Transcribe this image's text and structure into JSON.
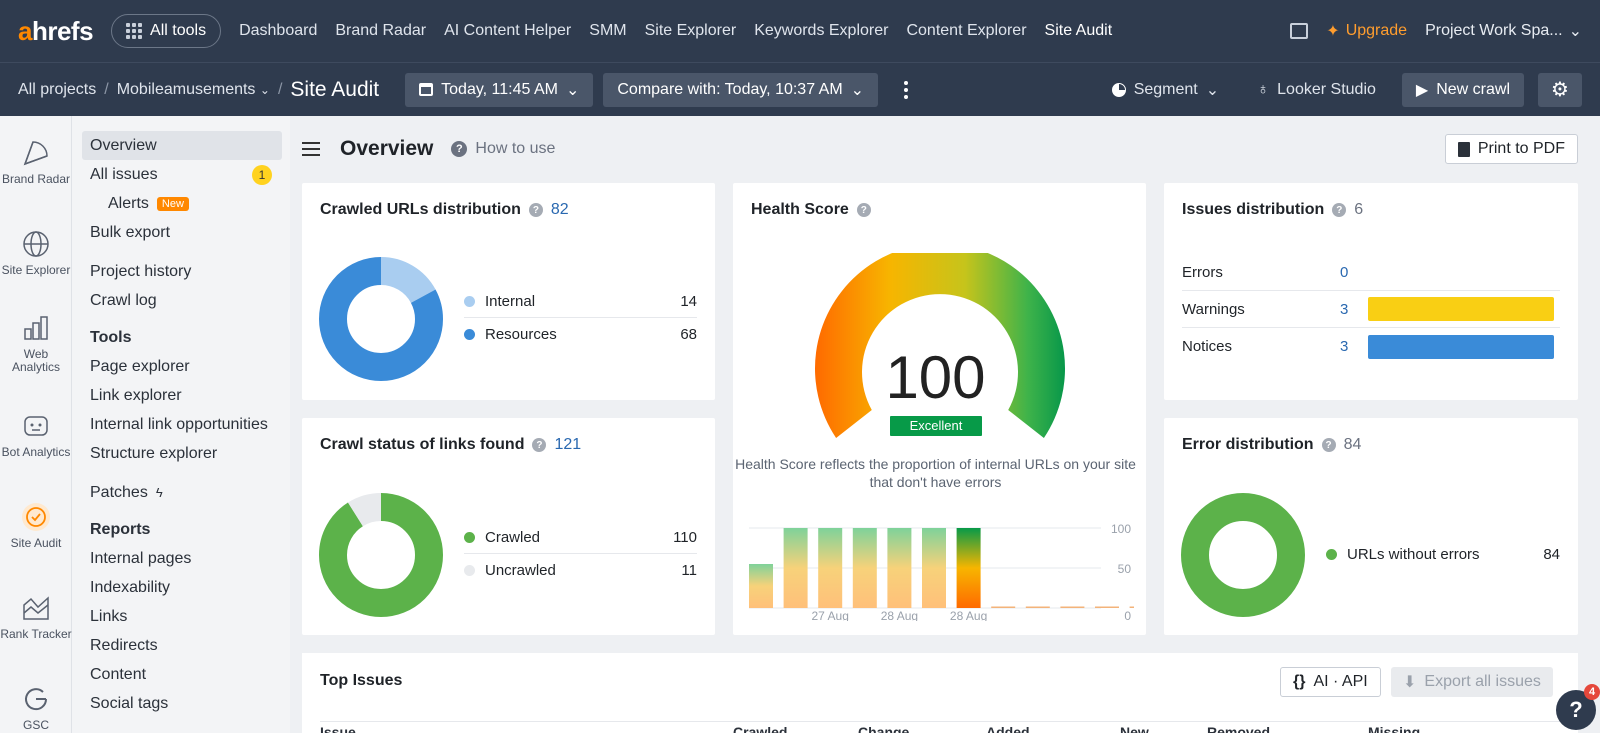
{
  "topnav": {
    "logo_a": "a",
    "logo_rest": "hrefs",
    "all_tools": "All tools",
    "links": [
      "Dashboard",
      "Brand Radar",
      "AI Content Helper",
      "SMM",
      "Site Explorer",
      "Keywords Explorer",
      "Content Explorer",
      "Site Audit"
    ],
    "active_link": "Site Audit",
    "upgrade": "Upgrade",
    "workspace": "Project Work Spa...",
    "accent": "#ff8800"
  },
  "subnav": {
    "all_projects": "All projects",
    "project": "Mobileamusements",
    "current": "Site Audit",
    "date": "Today, 11:45 AM",
    "compare": "Compare with: Today, 10:37 AM",
    "segment": "Segment",
    "looker": "Looker Studio",
    "new_crawl": "New crawl"
  },
  "rail": [
    {
      "label": "Brand Radar",
      "icon": "brand-radar-icon"
    },
    {
      "label": "Site Explorer",
      "icon": "globe-icon"
    },
    {
      "label": "Web Analytics",
      "icon": "bar-chart-icon"
    },
    {
      "label": "Bot Analytics",
      "icon": "bot-icon"
    },
    {
      "label": "Site Audit",
      "icon": "site-audit-icon"
    },
    {
      "label": "Rank Tracker",
      "icon": "rank-tracker-icon"
    },
    {
      "label": "GSC",
      "icon": "google-icon"
    }
  ],
  "sidemenu": {
    "overview": "Overview",
    "all_issues": "All issues",
    "all_issues_badge": "1",
    "alerts": "Alerts",
    "alerts_badge": "New",
    "bulk_export": "Bulk export",
    "project_history": "Project history",
    "crawl_log": "Crawl log",
    "tools_head": "Tools",
    "tools": [
      "Page explorer",
      "Link explorer",
      "Internal link opportunities",
      "Structure explorer"
    ],
    "patches": "Patches",
    "reports_head": "Reports",
    "reports": [
      "Internal pages",
      "Indexability",
      "Links",
      "Redirects",
      "Content",
      "Social tags"
    ]
  },
  "main": {
    "title": "Overview",
    "how_to_use": "How to use",
    "print_pdf": "Print to PDF"
  },
  "crawled_urls": {
    "title": "Crawled URLs distribution",
    "count": "82",
    "items": [
      {
        "label": "Internal",
        "value": "14",
        "color": "#a9cdf0"
      },
      {
        "label": "Resources",
        "value": "68",
        "color": "#3a8bd8"
      }
    ]
  },
  "crawl_status": {
    "title": "Crawl status of links found",
    "count": "121",
    "items": [
      {
        "label": "Crawled",
        "value": "110",
        "color": "#5cb24a"
      },
      {
        "label": "Uncrawled",
        "value": "11",
        "color": "#e8eaed"
      }
    ]
  },
  "health": {
    "title": "Health Score",
    "score": "100",
    "rating": "Excellent",
    "description": "Health Score reflects the proportion of internal URLs on your site that don't have errors",
    "axis_labels": [
      "100",
      "50",
      "0"
    ],
    "date_labels": [
      "27 Aug",
      "28 Aug",
      "28 Aug"
    ],
    "history": [
      0.55,
      1,
      1,
      1,
      1,
      1,
      1,
      0,
      0,
      0,
      0,
      0
    ]
  },
  "issues_dist": {
    "title": "Issues distribution",
    "count": "6",
    "rows": [
      {
        "label": "Errors",
        "value": "0",
        "color": "#e5483b",
        "fraction": 0
      },
      {
        "label": "Warnings",
        "value": "3",
        "color": "#f9cf14",
        "fraction": 1
      },
      {
        "label": "Notices",
        "value": "3",
        "color": "#3a8bd8",
        "fraction": 1
      }
    ]
  },
  "error_dist": {
    "title": "Error distribution",
    "count": "84",
    "items": [
      {
        "label": "URLs without errors",
        "value": "84",
        "color": "#5cb24a"
      }
    ]
  },
  "top_issues": {
    "title": "Top Issues",
    "ai_api": "AI · API",
    "export": "Export all issues",
    "columns": [
      "Issue",
      "Crawled",
      "Change",
      "Added",
      "New",
      "Removed",
      "Missing"
    ]
  },
  "help": {
    "label": "?",
    "notifications": "4"
  }
}
